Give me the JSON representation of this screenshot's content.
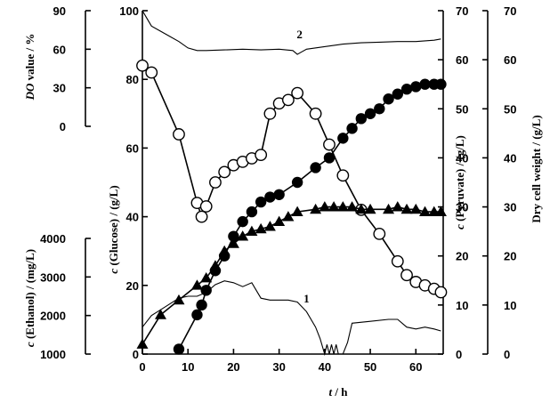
{
  "chart_data": {
    "type": "line",
    "x_axis": {
      "label_var": "t",
      "label_unit": " / h",
      "range": [
        0,
        66
      ],
      "ticks": [
        0,
        10,
        20,
        30,
        40,
        50,
        60
      ]
    },
    "axes": {
      "glucose": {
        "label_c": "c",
        "label_rest": " (Glucose) / (g/L)",
        "range": [
          0,
          100
        ],
        "ticks": [
          0,
          20,
          40,
          60,
          80,
          100
        ]
      },
      "pyruvate": {
        "label_c": "c",
        "label_rest": " (Pyruvate) / (g/L)",
        "range": [
          0,
          70
        ],
        "ticks": [
          0,
          10,
          20,
          30,
          40,
          50,
          60,
          70
        ]
      },
      "dcw": {
        "label": "Dry cell weight / (g/L)",
        "range": [
          0,
          70
        ],
        "ticks": [
          0,
          10,
          20,
          30,
          40,
          50,
          60,
          70
        ]
      },
      "do": {
        "label_var": "DO",
        "label_rest": " value / %",
        "range": [
          0,
          90
        ],
        "ticks": [
          0,
          30,
          60,
          90
        ]
      },
      "ethanol": {
        "label_c": "c",
        "label_rest": " (Ethanol) / (mg/L)",
        "range": [
          1000,
          4000
        ],
        "ticks": [
          1000,
          2000,
          3000,
          4000
        ]
      }
    },
    "annotations": [
      {
        "text": "2",
        "x": 34.5,
        "glucose_units": 92
      },
      {
        "text": "1",
        "x": 36,
        "glucose_units": 15
      }
    ],
    "series": [
      {
        "marker": "open-circle",
        "axis": "glucose",
        "x": [
          0,
          2,
          8,
          12,
          13,
          14,
          16,
          18,
          20,
          22,
          24,
          26,
          28,
          30,
          32,
          34,
          38,
          41,
          44,
          48,
          52,
          56,
          58,
          60,
          62,
          64,
          65.5
        ],
        "y": [
          84,
          82,
          64,
          44,
          40,
          43,
          50,
          53,
          55,
          56,
          57,
          58,
          70,
          73,
          74,
          76,
          70,
          61,
          52,
          42,
          35,
          27,
          23,
          21,
          20,
          19,
          18
        ]
      },
      {
        "marker": "filled-circle",
        "axis": "pyruvate",
        "x": [
          8,
          12,
          13,
          14,
          16,
          18,
          20,
          22,
          24,
          26,
          28,
          30,
          34,
          38,
          41,
          44,
          46,
          48,
          50,
          52,
          54,
          56,
          58,
          60,
          62,
          64,
          65.5
        ],
        "y": [
          1,
          8,
          10,
          13,
          17,
          20,
          24,
          27,
          29,
          31,
          32,
          32.5,
          35,
          38,
          40,
          44,
          46,
          48,
          49,
          50,
          52,
          53,
          54,
          54.5,
          55,
          55,
          55
        ]
      },
      {
        "marker": "filled-triangle",
        "axis": "dcw",
        "x": [
          0,
          4,
          8,
          12,
          14,
          16,
          18,
          20,
          22,
          24,
          26,
          28,
          30,
          32,
          34,
          38,
          40,
          42,
          44,
          46,
          48,
          50,
          54,
          56,
          58,
          60,
          62,
          64,
          65.5
        ],
        "y": [
          2,
          8,
          11,
          14,
          15.5,
          18,
          21,
          22.5,
          24,
          25,
          25.5,
          26,
          27,
          28,
          29,
          29.5,
          30,
          30,
          30,
          30,
          29.5,
          29.5,
          29.5,
          30,
          29.5,
          29.5,
          29,
          29,
          29
        ]
      },
      {
        "name": "2",
        "marker": "none",
        "axis": "do",
        "x": [
          0,
          1,
          2,
          4,
          6,
          8,
          10,
          12,
          14,
          18,
          22,
          26,
          30,
          33,
          34,
          35,
          36,
          40,
          44,
          48,
          52,
          56,
          60,
          62,
          64,
          65.5
        ],
        "y": [
          90,
          84,
          78,
          74,
          70,
          66,
          61,
          59,
          59,
          59.5,
          60,
          59.5,
          60,
          59,
          56,
          58,
          60,
          62,
          64,
          65,
          65.5,
          66,
          66,
          66.5,
          67,
          68
        ]
      },
      {
        "name": "1",
        "marker": "none",
        "axis": "ethanol",
        "x": [
          0,
          2,
          4,
          6,
          8,
          10,
          12,
          14,
          16,
          18,
          20,
          22,
          24,
          26,
          28,
          30,
          32,
          34,
          36,
          38,
          39,
          40,
          40.5,
          41,
          41.5,
          42,
          42.5,
          43,
          43.5,
          44,
          45,
          46,
          50,
          54,
          56,
          58,
          60,
          62,
          64,
          65.5
        ],
        "y": [
          1700,
          2000,
          2150,
          2300,
          2450,
          2500,
          2500,
          2600,
          2800,
          2900,
          2850,
          2750,
          2850,
          2450,
          2400,
          2400,
          2400,
          2350,
          2100,
          1700,
          1400,
          1000,
          1250,
          1000,
          1250,
          1000,
          1250,
          1000,
          1000,
          1000,
          1300,
          1800,
          1850,
          1900,
          1900,
          1700,
          1650,
          1700,
          1650,
          1600
        ]
      }
    ]
  }
}
